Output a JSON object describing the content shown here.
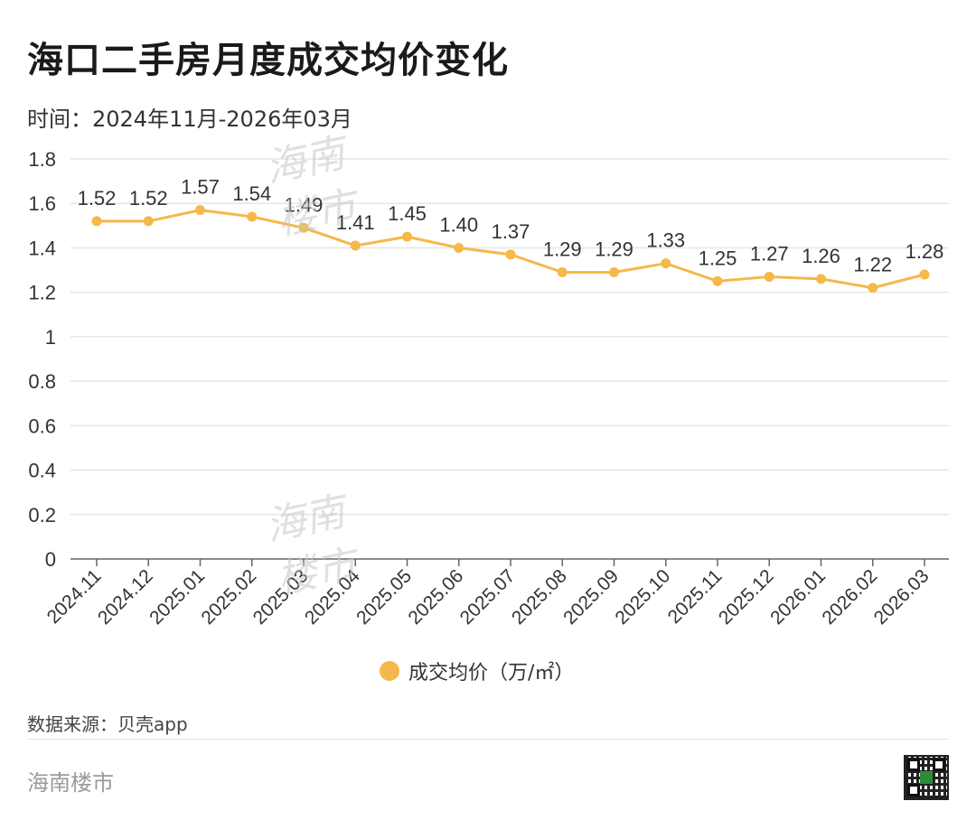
{
  "title": "海口二手房月度成交均价变化",
  "subtitle": "时间：2024年11月-2026年03月",
  "source": "数据来源：贝壳app",
  "brand": "海南楼市",
  "watermark": [
    "海南",
    "楼市"
  ],
  "colors": {
    "series": "#F5B84A",
    "grid": "#e6e6e6",
    "axis": "#555555"
  },
  "chart_data": {
    "type": "line",
    "x": [
      "2024.11",
      "2024.12",
      "2025.01",
      "2025.02",
      "2025.03",
      "2025.04",
      "2025.05",
      "2025.06",
      "2025.07",
      "2025.08",
      "2025.09",
      "2025.10",
      "2025.11",
      "2025.12",
      "2026.01",
      "2026.02",
      "2026.03"
    ],
    "series": [
      {
        "name": "成交均价（万/㎡）",
        "values": [
          1.52,
          1.52,
          1.57,
          1.54,
          1.49,
          1.41,
          1.45,
          1.4,
          1.37,
          1.29,
          1.29,
          1.33,
          1.25,
          1.27,
          1.26,
          1.22,
          1.28
        ]
      }
    ],
    "value_labels": [
      "1.52",
      "1.52",
      "1.57",
      "1.54",
      "1.49",
      "1.41",
      "1.45",
      "1.40",
      "1.37",
      "1.29",
      "1.29",
      "1.33",
      "1.25",
      "1.27",
      "1.26",
      "1.22",
      "1.28"
    ],
    "yticks": [
      "0",
      "0.2",
      "0.4",
      "0.6",
      "0.8",
      "1",
      "1.2",
      "1.4",
      "1.6",
      "1.8"
    ],
    "ylim": [
      0,
      1.8
    ],
    "grid": true,
    "legend": "bottom-center"
  }
}
